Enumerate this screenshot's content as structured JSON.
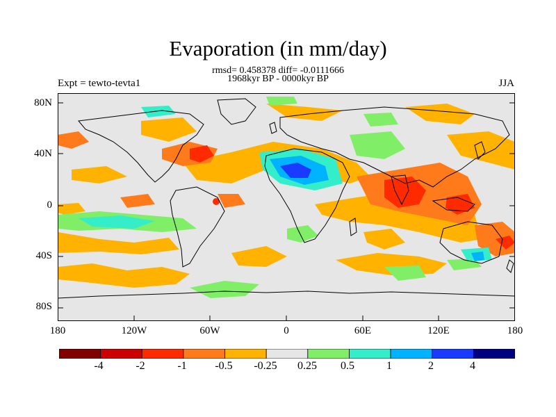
{
  "title": "Evaporation (in mm/day)",
  "stats_line": "rmsd= 0.458378 diff= -0.0111666",
  "period_line": "1968kyr BP - 0000kyr BP",
  "experiment": "Expt = tewto-tevta1",
  "season": "JJA",
  "lat_ticks": [
    "80N",
    "40N",
    "0",
    "40S",
    "80S"
  ],
  "lon_ticks": [
    "180",
    "120W",
    "60W",
    "0",
    "60E",
    "120E",
    "180"
  ],
  "colorbar": {
    "labels": [
      "-4",
      "-2",
      "-1",
      "-0.5",
      "-0.25",
      "0.25",
      "0.5",
      "1",
      "2",
      "4"
    ],
    "colors": [
      "#800000",
      "#cc0000",
      "#ff2a00",
      "#ff7a1a",
      "#ffb300",
      "#e6e6e6",
      "#80ee66",
      "#33eec8",
      "#00b3ff",
      "#1a3aff",
      "#000080"
    ]
  },
  "colors": {
    "neutral": "#e6e6e6",
    "coast": "#000000"
  }
}
